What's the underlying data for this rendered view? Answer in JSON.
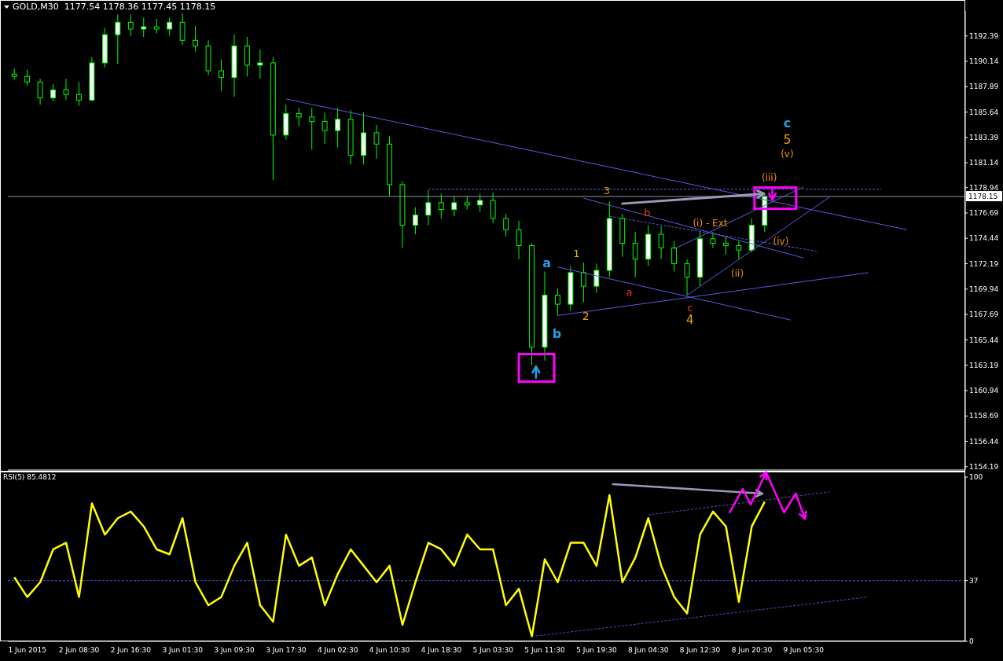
{
  "chart_data": [
    {
      "type": "candlestick",
      "title": "GOLD,M30  1177.54 1178.36 1177.45 1178.15",
      "color": "#00ff00",
      "categories": [
        null,
        null,
        null,
        null,
        null,
        null,
        null,
        null,
        null,
        null,
        null,
        null,
        null,
        null,
        null,
        null,
        null,
        null,
        null,
        null,
        null,
        null,
        null,
        null,
        null,
        null,
        null,
        null,
        null,
        null,
        null,
        null,
        null,
        null,
        null,
        null,
        null,
        null,
        null,
        null,
        null,
        null,
        null,
        null,
        null,
        null,
        null,
        null,
        null,
        null,
        null,
        null,
        null,
        null,
        null,
        null,
        null,
        null,
        null,
        null,
        null,
        null,
        null,
        null,
        null,
        null,
        null,
        null,
        null,
        null,
        null,
        null,
        null,
        null
      ],
      "ohlc": [
        [
          1189.0,
          1189.5,
          1188.5,
          1188.8
        ],
        [
          1188.8,
          1189.4,
          1188.0,
          1188.3
        ],
        [
          1188.3,
          1188.6,
          1186.3,
          1186.9
        ],
        [
          1186.9,
          1188.1,
          1186.6,
          1187.6
        ],
        [
          1187.6,
          1188.6,
          1186.7,
          1187.2
        ],
        [
          1187.2,
          1188.3,
          1186.2,
          1186.7
        ],
        [
          1186.7,
          1190.5,
          1186.6,
          1190.0
        ],
        [
          1190.0,
          1193.1,
          1189.6,
          1192.5
        ],
        [
          1192.5,
          1194.3,
          1189.9,
          1193.6
        ],
        [
          1193.6,
          1194.3,
          1192.4,
          1193.0
        ],
        [
          1193.0,
          1194.0,
          1192.3,
          1193.2
        ],
        [
          1193.2,
          1193.9,
          1192.6,
          1193.0
        ],
        [
          1193.0,
          1194.0,
          1192.4,
          1193.6
        ],
        [
          1193.6,
          1194.4,
          1191.6,
          1192.0
        ],
        [
          1192.0,
          1193.3,
          1191.0,
          1191.5
        ],
        [
          1191.5,
          1192.0,
          1188.9,
          1189.3
        ],
        [
          1189.3,
          1190.3,
          1187.5,
          1188.7
        ],
        [
          1188.7,
          1192.5,
          1187.0,
          1191.5
        ],
        [
          1191.5,
          1192.3,
          1188.8,
          1189.8
        ],
        [
          1189.8,
          1191.2,
          1188.6,
          1190.0
        ],
        [
          1190.0,
          1190.5,
          1179.6,
          1183.6
        ],
        [
          1183.6,
          1186.3,
          1183.2,
          1185.5
        ],
        [
          1185.5,
          1186.0,
          1184.4,
          1185.2
        ],
        [
          1185.2,
          1186.0,
          1182.3,
          1184.8
        ],
        [
          1184.8,
          1185.6,
          1182.8,
          1184.0
        ],
        [
          1184.0,
          1186.0,
          1182.5,
          1185.0
        ],
        [
          1185.0,
          1185.8,
          1181.0,
          1181.8
        ],
        [
          1181.8,
          1185.6,
          1181.0,
          1183.8
        ],
        [
          1183.8,
          1184.5,
          1181.5,
          1182.8
        ],
        [
          1182.8,
          1183.5,
          1178.2,
          1179.2
        ],
        [
          1179.2,
          1179.5,
          1173.6,
          1175.6
        ],
        [
          1175.6,
          1177.2,
          1174.8,
          1176.5
        ],
        [
          1176.5,
          1178.7,
          1175.6,
          1177.6
        ],
        [
          1177.6,
          1178.4,
          1176.2,
          1177.0
        ],
        [
          1177.0,
          1178.2,
          1176.4,
          1177.6
        ],
        [
          1177.6,
          1178.2,
          1177.0,
          1177.4
        ],
        [
          1177.4,
          1178.4,
          1176.8,
          1177.8
        ],
        [
          1177.8,
          1178.5,
          1175.8,
          1176.2
        ],
        [
          1176.2,
          1176.6,
          1174.6,
          1175.2
        ],
        [
          1175.2,
          1176.0,
          1172.6,
          1173.8
        ],
        [
          1173.8,
          1174.0,
          1163.2,
          1164.8
        ],
        [
          1164.8,
          1171.5,
          1163.6,
          1169.4
        ],
        [
          1169.4,
          1170.0,
          1167.6,
          1168.6
        ],
        [
          1168.6,
          1172.0,
          1168.0,
          1171.4
        ],
        [
          1171.4,
          1172.3,
          1168.8,
          1170.2
        ],
        [
          1170.2,
          1172.2,
          1169.6,
          1171.6
        ],
        [
          1171.6,
          1177.7,
          1171.0,
          1176.2
        ],
        [
          1176.2,
          1176.6,
          1172.8,
          1174.0
        ],
        [
          1174.0,
          1175.0,
          1171.0,
          1172.6
        ],
        [
          1172.6,
          1175.6,
          1172.0,
          1174.8
        ],
        [
          1174.8,
          1175.5,
          1172.6,
          1173.6
        ],
        [
          1173.6,
          1174.2,
          1171.5,
          1172.2
        ],
        [
          1172.2,
          1172.6,
          1169.4,
          1171.0
        ],
        [
          1171.0,
          1175.0,
          1170.2,
          1174.4
        ],
        [
          1174.4,
          1175.0,
          1173.6,
          1174.0
        ],
        [
          1174.0,
          1174.6,
          1173.0,
          1173.8
        ],
        [
          1173.8,
          1174.2,
          1172.6,
          1173.4
        ],
        [
          1173.4,
          1176.2,
          1173.2,
          1175.6
        ],
        [
          1175.6,
          1178.4,
          1175.0,
          1178.15
        ],
        null,
        null,
        null,
        null,
        null,
        null,
        null,
        null,
        null,
        null,
        null,
        null,
        null,
        null,
        null
      ],
      "series": [
        {
          "type": "line",
          "color": "#5a5ae0",
          "values": [
            null,
            null,
            null,
            null,
            null,
            null,
            null,
            null,
            null,
            null,
            null,
            null,
            null,
            null,
            null,
            null,
            null,
            null,
            null,
            null,
            null,
            1186.8,
            null,
            null,
            null,
            null,
            null,
            null,
            null,
            null,
            null,
            null,
            null,
            null,
            null,
            null,
            null,
            null,
            null,
            null,
            null,
            null,
            null,
            null,
            null,
            null,
            null,
            null,
            null,
            null,
            null,
            null,
            null,
            null,
            null,
            null,
            null,
            null,
            null,
            null,
            null,
            null,
            null,
            null,
            null,
            null,
            null,
            null,
            null,
            1175.2,
            null,
            null,
            null,
            null
          ]
        },
        {
          "type": "line",
          "color": "#5a5ae0",
          "line_style": "dashed",
          "values": [
            null,
            null,
            null,
            null,
            null,
            null,
            null,
            null,
            null,
            null,
            null,
            null,
            null,
            null,
            null,
            null,
            null,
            null,
            null,
            null,
            null,
            null,
            null,
            null,
            null,
            null,
            null,
            null,
            null,
            null,
            null,
            null,
            1178.8,
            null,
            null,
            null,
            null,
            null,
            null,
            null,
            null,
            null,
            null,
            null,
            null,
            null,
            null,
            null,
            null,
            null,
            null,
            null,
            null,
            null,
            null,
            null,
            null,
            null,
            null,
            null,
            null,
            null,
            null,
            null,
            null,
            null,
            null,
            1178.8,
            null,
            null,
            null,
            null,
            null,
            null
          ]
        },
        {
          "type": "line",
          "color": "#5a5ae0",
          "values": [
            null,
            null,
            null,
            null,
            null,
            null,
            null,
            null,
            null,
            null,
            null,
            null,
            null,
            null,
            null,
            null,
            null,
            null,
            null,
            null,
            null,
            null,
            null,
            null,
            null,
            null,
            null,
            null,
            null,
            null,
            null,
            null,
            null,
            null,
            null,
            null,
            null,
            null,
            null,
            null,
            null,
            null,
            null,
            null,
            1178.0,
            null,
            null,
            null,
            null,
            null,
            null,
            null,
            null,
            null,
            null,
            null,
            null,
            null,
            null,
            null,
            null,
            1172.7,
            null,
            null,
            null,
            null,
            null,
            null,
            null,
            null,
            null,
            null,
            null,
            null
          ]
        },
        {
          "type": "line",
          "color": "#5a5ae0",
          "line_style": "dashed",
          "values": [
            null,
            null,
            null,
            null,
            null,
            null,
            null,
            null,
            null,
            null,
            null,
            null,
            null,
            null,
            null,
            null,
            null,
            null,
            null,
            null,
            null,
            null,
            null,
            null,
            null,
            null,
            null,
            null,
            null,
            null,
            null,
            null,
            null,
            null,
            null,
            null,
            null,
            null,
            null,
            null,
            null,
            null,
            null,
            null,
            null,
            null,
            1176.4,
            null,
            null,
            null,
            null,
            null,
            null,
            null,
            null,
            null,
            null,
            null,
            null,
            null,
            null,
            null,
            1173.3,
            null,
            null,
            null,
            null,
            null,
            null,
            null,
            null,
            null,
            null,
            null
          ]
        },
        {
          "type": "line",
          "color": "#5a5ae0",
          "values": [
            null,
            null,
            null,
            null,
            null,
            null,
            null,
            null,
            null,
            null,
            null,
            null,
            null,
            null,
            null,
            null,
            null,
            null,
            null,
            null,
            null,
            null,
            null,
            null,
            null,
            null,
            null,
            null,
            null,
            null,
            null,
            null,
            null,
            null,
            null,
            null,
            null,
            null,
            null,
            null,
            null,
            null,
            1171.9,
            null,
            null,
            null,
            null,
            null,
            null,
            null,
            null,
            null,
            null,
            null,
            null,
            null,
            null,
            null,
            null,
            null,
            1167.2,
            null,
            null,
            null,
            null,
            null,
            null,
            null,
            null,
            null,
            null,
            null,
            null,
            null
          ]
        },
        {
          "type": "line",
          "color": "#5a5ae0",
          "values": [
            null,
            null,
            null,
            null,
            null,
            null,
            null,
            null,
            null,
            null,
            null,
            null,
            null,
            null,
            null,
            null,
            null,
            null,
            null,
            null,
            null,
            null,
            null,
            null,
            null,
            null,
            null,
            null,
            null,
            null,
            null,
            null,
            null,
            null,
            null,
            null,
            null,
            null,
            null,
            null,
            null,
            null,
            1167.6,
            null,
            null,
            null,
            null,
            null,
            null,
            null,
            null,
            null,
            null,
            null,
            null,
            null,
            null,
            null,
            null,
            null,
            null,
            null,
            null,
            null,
            null,
            null,
            1171.4,
            null,
            null,
            null,
            null,
            null,
            null,
            null
          ]
        },
        {
          "type": "line",
          "color": "#5a5ae0",
          "values": [
            null,
            null,
            null,
            null,
            null,
            null,
            null,
            null,
            null,
            null,
            null,
            null,
            null,
            null,
            null,
            null,
            null,
            null,
            null,
            null,
            null,
            null,
            null,
            null,
            null,
            null,
            null,
            null,
            null,
            null,
            null,
            null,
            null,
            null,
            null,
            null,
            null,
            null,
            null,
            null,
            null,
            null,
            null,
            null,
            null,
            null,
            null,
            null,
            null,
            null,
            null,
            null,
            1169.4,
            null,
            null,
            null,
            null,
            null,
            null,
            null,
            null,
            null,
            null,
            1178.1,
            null,
            null,
            null,
            null,
            null,
            null,
            null,
            null,
            null,
            null
          ]
        },
        {
          "type": "line",
          "color": "#5a5ae0",
          "values": [
            null,
            null,
            null,
            null,
            null,
            null,
            null,
            null,
            null,
            null,
            null,
            null,
            null,
            null,
            null,
            null,
            null,
            null,
            null,
            null,
            null,
            null,
            null,
            null,
            null,
            null,
            null,
            null,
            null,
            null,
            null,
            null,
            null,
            null,
            null,
            null,
            null,
            null,
            null,
            null,
            null,
            null,
            null,
            null,
            null,
            null,
            null,
            null,
            null,
            null,
            null,
            1173.5,
            null,
            null,
            null,
            null,
            null,
            null,
            null,
            null,
            null,
            1179.0,
            null,
            null,
            null,
            null,
            null,
            null,
            null,
            null,
            null,
            null,
            null,
            null
          ]
        }
      ],
      "ylim": [
        1153.9,
        1194.6
      ],
      "yticks": [
        1192.39,
        1190.14,
        1187.89,
        1185.64,
        1183.39,
        1181.14,
        1178.94,
        1176.69,
        1174.44,
        1172.19,
        1169.94,
        1167.69,
        1165.44,
        1163.19,
        1160.94,
        1158.69,
        1156.44,
        1154.19
      ],
      "ref_lines": [
        {
          "axis": "y",
          "value": 1178.15,
          "label": "1178.15",
          "color": "#8a96a8"
        }
      ],
      "tick_labels": "y",
      "annotations": [
        "a",
        "b",
        "c",
        "1",
        "2",
        "3",
        "4",
        "5",
        "a",
        "b",
        "c",
        "(i) - Ext",
        "(ii)",
        "(iii)",
        "(iv)",
        "(v)"
      ]
    },
    {
      "type": "line",
      "title": "RSI(5) 85.4812",
      "categories": [
        null,
        "1 Jun 2015",
        null,
        null,
        null,
        "2 Jun 08:30",
        null,
        null,
        null,
        "2 Jun 16:30",
        null,
        null,
        null,
        "3 Jun 01:30",
        null,
        null,
        null,
        "3 Jun 09:30",
        null,
        null,
        null,
        "3 Jun 17:30",
        null,
        null,
        null,
        "4 Jun 02:30",
        null,
        null,
        null,
        "4 Jun 10:30",
        null,
        null,
        null,
        "4 Jun 18:30",
        null,
        null,
        null,
        "5 Jun 03:30",
        null,
        null,
        null,
        "5 Jun 11:30",
        null,
        null,
        null,
        "5 Jun 19:30",
        null,
        null,
        null,
        "8 Jun 04:30",
        null,
        null,
        null,
        "8 Jun 12:30",
        null,
        null,
        null,
        "8 Jun 20:30",
        null,
        null,
        null,
        "9 Jun 05:30",
        null,
        null,
        null,
        null,
        null,
        null,
        null,
        null,
        null,
        null,
        null,
        null
      ],
      "series": [
        {
          "color": "#ffff00",
          "values": [
            39,
            27,
            36,
            56,
            60,
            27,
            84,
            65,
            75,
            79,
            70,
            56,
            53,
            75,
            36,
            22,
            27,
            46,
            60,
            22,
            12,
            65,
            46,
            51,
            22,
            41,
            56,
            46,
            36,
            46,
            10,
            36,
            60,
            56,
            46,
            65,
            56,
            56,
            22,
            32,
            3,
            50,
            36,
            60,
            60,
            46,
            89,
            36,
            51,
            75,
            46,
            27,
            17,
            65,
            79,
            70,
            24,
            70,
            85,
            null,
            null,
            null,
            null,
            null,
            null,
            null,
            null,
            null,
            null,
            null,
            null,
            null,
            null,
            null
          ]
        },
        {
          "color": "#4a4ad0",
          "line_style": "dashed",
          "values": [
            null,
            null,
            null,
            null,
            null,
            null,
            null,
            null,
            null,
            null,
            null,
            null,
            null,
            null,
            null,
            null,
            null,
            null,
            null,
            null,
            null,
            null,
            null,
            null,
            null,
            null,
            null,
            null,
            null,
            null,
            null,
            null,
            null,
            null,
            null,
            null,
            null,
            null,
            null,
            null,
            null,
            null,
            null,
            null,
            null,
            null,
            null,
            null,
            null,
            77,
            null,
            null,
            null,
            null,
            null,
            null,
            null,
            null,
            null,
            null,
            null,
            null,
            null,
            91,
            null,
            null,
            null,
            null,
            null,
            null,
            null,
            null,
            null,
            null
          ]
        },
        {
          "color": "#4a4ad0",
          "line_style": "dashed",
          "values": [
            null,
            null,
            null,
            null,
            null,
            null,
            null,
            null,
            null,
            null,
            null,
            null,
            null,
            null,
            null,
            null,
            null,
            null,
            null,
            null,
            null,
            null,
            null,
            null,
            null,
            null,
            null,
            null,
            null,
            null,
            null,
            null,
            null,
            null,
            null,
            null,
            null,
            null,
            null,
            null,
            3,
            null,
            null,
            null,
            null,
            null,
            null,
            null,
            null,
            null,
            null,
            null,
            null,
            null,
            null,
            null,
            null,
            null,
            null,
            null,
            null,
            null,
            null,
            null,
            null,
            null,
            27,
            null,
            null,
            null,
            null,
            null,
            null,
            null
          ]
        }
      ],
      "ylim": [
        0,
        100
      ],
      "yticks": [
        100,
        37,
        0
      ],
      "ref_lines": [
        {
          "axis": "y",
          "value": 37,
          "color": "#4a4ad0",
          "line_style": "dashed"
        }
      ]
    }
  ]
}
